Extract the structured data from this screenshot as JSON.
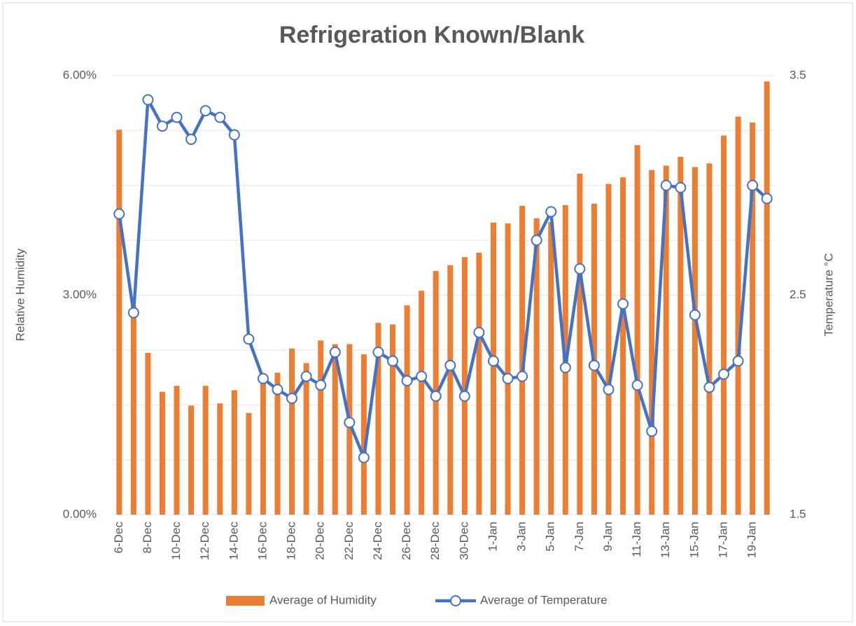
{
  "chart_data": {
    "type": "bar-line",
    "title": "Refrigeration Known/Blank",
    "y_label": "Relative Humidity",
    "y2_label": "Temperature °C",
    "categories": [
      "6-Dec",
      null,
      "8-Dec",
      null,
      "10-Dec",
      null,
      "12-Dec",
      null,
      "14-Dec",
      null,
      "16-Dec",
      null,
      "18-Dec",
      null,
      "20-Dec",
      null,
      "22-Dec",
      null,
      "24-Dec",
      null,
      "26-Dec",
      null,
      "28-Dec",
      null,
      "30-Dec",
      null,
      "1-Jan",
      null,
      "3-Jan",
      null,
      "5-Jan",
      null,
      "7-Jan",
      null,
      "9-Jan",
      null,
      "11-Jan",
      null,
      "13-Jan",
      null,
      "15-Jan",
      null,
      "17-Jan",
      null,
      "19-Jan",
      null
    ],
    "series": [
      {
        "name": "Average of Humidity",
        "type": "bar",
        "color": "#ed7d31",
        "values": [
          5.26,
          2.85,
          2.21,
          1.68,
          1.76,
          1.49,
          1.76,
          1.52,
          1.7,
          1.39,
          1.82,
          1.94,
          2.27,
          2.07,
          2.38,
          2.33,
          2.33,
          2.19,
          2.62,
          2.6,
          2.86,
          3.06,
          3.33,
          3.41,
          3.52,
          3.58,
          3.99,
          3.98,
          4.22,
          4.05,
          4.0,
          4.23,
          4.66,
          4.25,
          4.52,
          4.61,
          5.05,
          4.71,
          4.77,
          4.89,
          4.75,
          4.8,
          5.18,
          5.44,
          5.36,
          5.92
        ]
      },
      {
        "name": "Average of Temperature",
        "type": "line",
        "axis": "y2",
        "color": "#4472c4",
        "values": [
          2.87,
          2.42,
          3.39,
          3.27,
          3.31,
          3.21,
          3.34,
          3.31,
          3.23,
          2.3,
          2.12,
          2.07,
          2.03,
          2.13,
          2.09,
          2.24,
          1.92,
          1.76,
          2.24,
          2.2,
          2.11,
          2.13,
          2.04,
          2.18,
          2.04,
          2.33,
          2.2,
          2.12,
          2.13,
          2.75,
          2.88,
          2.17,
          2.62,
          2.18,
          2.07,
          2.46,
          2.09,
          1.88,
          3.0,
          2.99,
          2.41,
          2.08,
          2.14,
          2.2,
          3.0,
          2.94
        ]
      }
    ],
    "ylim": [
      0,
      6
    ],
    "yticks": [
      {
        "value": 0,
        "label": "0.00%"
      },
      {
        "value": 3,
        "label": "3.00%"
      },
      {
        "value": 6,
        "label": "6.00%"
      }
    ],
    "ygrid": [
      0,
      0.75,
      1.5,
      2.25,
      3,
      3.75,
      4.5,
      5.25,
      6
    ],
    "y2lim": [
      1.5,
      3.5
    ],
    "y2ticks": [
      1.5,
      2.5,
      3.5
    ],
    "grid": true,
    "legend": "bottom"
  }
}
